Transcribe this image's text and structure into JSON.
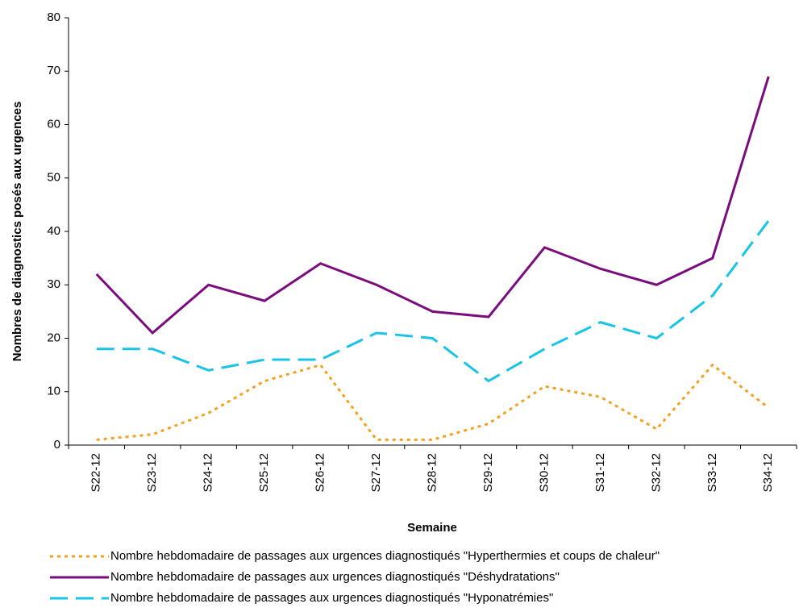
{
  "chart_data": {
    "type": "line",
    "y_label": "Nombres de diagnostics posés aux urgences",
    "x_label": "Semaine",
    "categories": [
      "S22-12",
      "S23-12",
      "S24-12",
      "S25-12",
      "S26-12",
      "S27-12",
      "S28-12",
      "S29-12",
      "S30-12",
      "S31-12",
      "S32-12",
      "S33-12",
      "S34-12"
    ],
    "series": [
      {
        "name": "Nombre hebdomadaire de passages aux urgences diagnostiqués \"Hyperthermies et coups de chaleur\"",
        "color": "#f5a021",
        "line_style": "dotted",
        "values": [
          1,
          2,
          6,
          12,
          15,
          1,
          1,
          4,
          11,
          9,
          3,
          15,
          7
        ]
      },
      {
        "name": "Nombre hebdomadaire de passages aux urgences diagnostiqués \"Déshydratations\"",
        "color": "#7b0c7e",
        "line_style": "solid",
        "values": [
          32,
          21,
          30,
          27,
          34,
          30,
          25,
          24,
          37,
          33,
          30,
          35,
          69
        ]
      },
      {
        "name": "Nombre hebdomadaire de passages aux urgences diagnostiqués \"Hyponatrémies\"",
        "color": "#19c4e6",
        "line_style": "dashed",
        "values": [
          18,
          18,
          14,
          16,
          16,
          21,
          20,
          12,
          18,
          23,
          20,
          28,
          42
        ]
      }
    ],
    "ylim": [
      0,
      80
    ],
    "yticks": [
      0,
      10,
      20,
      30,
      40,
      50,
      60,
      70,
      80
    ],
    "grid": false,
    "legend": "bottom"
  }
}
